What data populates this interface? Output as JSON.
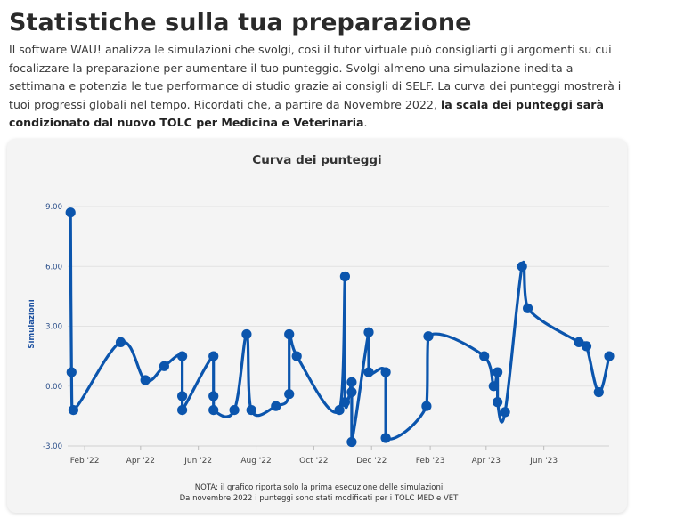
{
  "page": {
    "title": "Statistiche sulla tua preparazione",
    "intro_text": "Il software WAU! analizza le simulazioni che svolgi, così il tutor virtuale può consigliarti gli argomenti su cui focalizzare la preparazione per aumentare il tuo punteggio. Svolgi almeno una simulazione inedita a settimana e potenzia le tue performance di studio grazie ai consigli di SELF. La curva dei punteggi mostrerà i tuoi progressi globali nel tempo. Ricordati che, a partire da Novembre 2022, ",
    "intro_bold": "la scala dei punteggi sarà condizionato dal nuovo TOLC per Medicina e Veterinaria",
    "intro_end": "."
  },
  "colors": {
    "series": "#0b55ad",
    "grid": "#e2e2e2",
    "card": "#f4f4f4"
  },
  "chart_data": {
    "type": "line",
    "title": "Curva dei punteggi",
    "ylabel": "Simulazioni",
    "xlabel": "",
    "ylim": [
      -3,
      9
    ],
    "yticks": [
      "-3.00",
      "0.00",
      "3.00",
      "6.00",
      "9.00"
    ],
    "ytick_values": [
      -3,
      0,
      3,
      6,
      9
    ],
    "xticks": [
      "Feb '22",
      "Apr '22",
      "Jun '22",
      "Aug '22",
      "Oct '22",
      "Dec '22",
      "Feb '23",
      "Apr '23",
      "Jun '23"
    ],
    "xtick_dates": [
      "2022-02-01",
      "2022-04-01",
      "2022-06-01",
      "2022-08-01",
      "2022-10-01",
      "2022-12-01",
      "2023-02-01",
      "2023-04-01",
      "2023-06-01"
    ],
    "xlim": [
      "2022-01-14",
      "2023-08-09"
    ],
    "grid": true,
    "series": [
      {
        "points": [
          {
            "x": "2022-01-17",
            "y": 8.7
          },
          {
            "x": "2022-01-18",
            "y": 0.7
          },
          {
            "x": "2022-01-20",
            "y": -1.2
          },
          {
            "x": "2022-03-11",
            "y": 2.2
          },
          {
            "x": "2022-04-06",
            "y": 0.3
          },
          {
            "x": "2022-04-26",
            "y": 1.0
          },
          {
            "x": "2022-05-15",
            "y": 1.5
          },
          {
            "x": "2022-05-15",
            "y": -0.5
          },
          {
            "x": "2022-05-15",
            "y": -1.2
          },
          {
            "x": "2022-06-17",
            "y": 1.5
          },
          {
            "x": "2022-06-17",
            "y": -0.5
          },
          {
            "x": "2022-06-17",
            "y": -1.2
          },
          {
            "x": "2022-07-09",
            "y": -1.2
          },
          {
            "x": "2022-07-22",
            "y": 2.6
          },
          {
            "x": "2022-07-27",
            "y": -1.2
          },
          {
            "x": "2022-08-22",
            "y": -1.0
          },
          {
            "x": "2022-09-05",
            "y": -0.4
          },
          {
            "x": "2022-09-05",
            "y": 2.6
          },
          {
            "x": "2022-09-13",
            "y": 1.5
          },
          {
            "x": "2022-10-28",
            "y": -1.2
          },
          {
            "x": "2022-11-03",
            "y": 5.5
          },
          {
            "x": "2022-11-03",
            "y": -0.8
          },
          {
            "x": "2022-11-10",
            "y": 0.2
          },
          {
            "x": "2022-11-10",
            "y": -0.3
          },
          {
            "x": "2022-11-10",
            "y": -2.8
          },
          {
            "x": "2022-11-28",
            "y": 2.7
          },
          {
            "x": "2022-11-28",
            "y": 0.7
          },
          {
            "x": "2022-12-16",
            "y": 0.7
          },
          {
            "x": "2022-12-16",
            "y": -2.6
          },
          {
            "x": "2023-01-28",
            "y": -1.0
          },
          {
            "x": "2023-01-30",
            "y": 2.5
          },
          {
            "x": "2023-03-30",
            "y": 1.5
          },
          {
            "x": "2023-04-09",
            "y": 0.0
          },
          {
            "x": "2023-04-13",
            "y": 0.7
          },
          {
            "x": "2023-04-13",
            "y": -0.8
          },
          {
            "x": "2023-04-21",
            "y": -1.3
          },
          {
            "x": "2023-05-09",
            "y": 6.0
          },
          {
            "x": "2023-05-15",
            "y": 3.9
          },
          {
            "x": "2023-07-08",
            "y": 2.2
          },
          {
            "x": "2023-07-16",
            "y": 2.0
          },
          {
            "x": "2023-07-29",
            "y": -0.3
          },
          {
            "x": "2023-08-09",
            "y": 1.5
          }
        ]
      }
    ],
    "notes": [
      "NOTA: il grafico riporta solo la prima esecuzione delle simulazioni",
      "Da novembre 2022 i punteggi sono stati modificati per i TOLC MED e VET"
    ]
  }
}
